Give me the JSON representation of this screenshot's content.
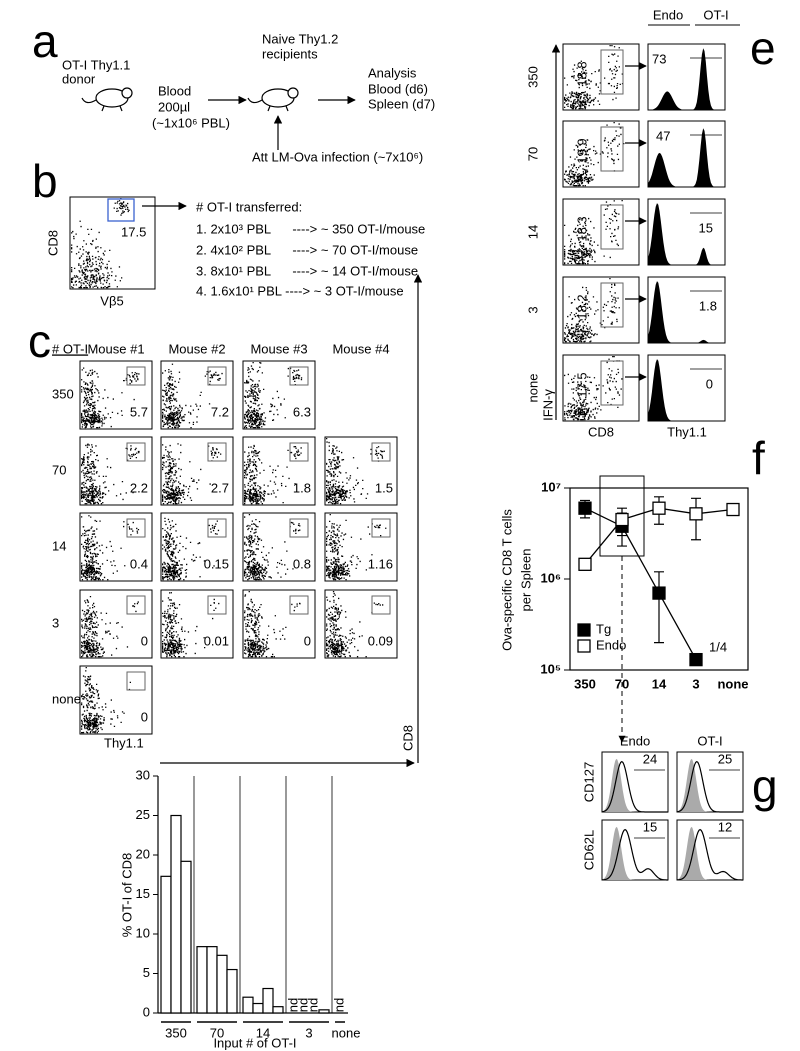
{
  "panel_a": {
    "letter": "a",
    "donor": [
      "OT-I Thy1.1",
      "donor"
    ],
    "blood": [
      "Blood",
      "200µl",
      "(~1x10⁶ PBL)"
    ],
    "recipients": [
      "Naive Thy1.2",
      "recipients"
    ],
    "analysis": [
      "Analysis",
      "Blood (d6)",
      "Spleen (d7)"
    ],
    "infection": "Att LM-Ova infection (~7x10⁶)"
  },
  "panel_b": {
    "letter": "b",
    "y_label": "CD8",
    "x_label": "Vβ5",
    "gate_value": "17.5",
    "list_title": "# OT-I transferred:",
    "list": [
      "1. 2x10³ PBL      ----> ~ 350 OT-I/mouse",
      "2. 4x10² PBL      ----> ~ 70 OT-I/mouse",
      "3. 8x10¹ PBL      ----> ~ 14 OT-I/mouse",
      "4. 1.6x10¹ PBL ----> ~ 3 OT-I/mouse"
    ]
  },
  "panel_c": {
    "letter": "c",
    "row_header": "# OT-I",
    "columns": [
      "Mouse #1",
      "Mouse #2",
      "Mouse #3",
      "Mouse #4"
    ],
    "rows": [
      {
        "label": "350",
        "values": [
          "5.7",
          "7.2",
          "6.3",
          null
        ]
      },
      {
        "label": "70",
        "values": [
          "2.2",
          "2.7",
          "1.8",
          "1.5"
        ]
      },
      {
        "label": "14",
        "values": [
          "0.4",
          "0.15",
          "0.8",
          "1.16"
        ]
      },
      {
        "label": "3",
        "values": [
          "0",
          "0.01",
          "0",
          "0.09"
        ]
      },
      {
        "label": "none",
        "values": [
          "0",
          null,
          null,
          null
        ]
      }
    ],
    "x_label": "Thy1.1",
    "y_label": "CD8"
  },
  "panel_e": {
    "letter": "e",
    "headers": [
      "Endo",
      "OT-I"
    ],
    "rows": [
      {
        "label": "350",
        "cd8_gate": "18.8",
        "thy11": "73"
      },
      {
        "label": "70",
        "cd8_gate": "19.9",
        "thy11": "47"
      },
      {
        "label": "14",
        "cd8_gate": "18.3",
        "thy11": "15"
      },
      {
        "label": "3",
        "cd8_gate": "18.2",
        "thy11": "1.8"
      },
      {
        "label": "none",
        "cd8_gate": "17.5",
        "thy11": "0"
      }
    ],
    "y_label": "IFN-γ",
    "x_labels": [
      "CD8",
      "Thy1.1"
    ]
  },
  "panel_f": {
    "letter": "f"
  },
  "panel_g": {
    "letter": "g",
    "columns": [
      "Endo",
      "OT-I"
    ],
    "rows": [
      {
        "label": "CD127",
        "values": [
          "24",
          "25"
        ]
      },
      {
        "label": "CD62L",
        "values": [
          "15",
          "12"
        ]
      }
    ]
  },
  "chart_data": [
    {
      "type": "bar",
      "y_label": "% OT-I of CD8",
      "x_label": "Input # of OT-I",
      "color": "#ffffff",
      "groups": [
        {
          "name": "350",
          "values": [
            17.3,
            25,
            19.2
          ]
        },
        {
          "name": "70",
          "values": [
            8.4,
            8.4,
            7.3,
            5.5
          ]
        },
        {
          "name": "14",
          "values": [
            2,
            1.2,
            3.1,
            0.8
          ]
        },
        {
          "name": "3",
          "values": [
            null,
            null,
            null,
            0.4
          ],
          "value_labels": [
            "nd",
            "nd",
            "nd",
            null
          ]
        },
        {
          "name": "none",
          "values": [
            null
          ],
          "value_labels": [
            "nd"
          ]
        }
      ],
      "ylim": [
        0,
        30
      ],
      "yticks": [
        0,
        5,
        10,
        15,
        20,
        25,
        30
      ]
    },
    {
      "type": "line",
      "y_label": [
        "Ova-specific CD8 T cells",
        "per Spleen"
      ],
      "categories": [
        "350",
        "70",
        "14",
        "3",
        "none"
      ],
      "log_scale": true,
      "ylim": [
        100000,
        10000000
      ],
      "yticks": [
        {
          "value": 100000,
          "label": "10⁵"
        },
        {
          "value": 1000000,
          "label": "10⁶"
        },
        {
          "value": 10000000,
          "label": "10⁷"
        }
      ],
      "legend": "lower left",
      "series": [
        {
          "name": "Tg",
          "color": "#000000",
          "values": [
            6000000,
            3800000,
            700000,
            130000,
            null
          ],
          "errors": [
            1300000,
            1500000,
            500000,
            null,
            null
          ]
        },
        {
          "name": "Endo",
          "color": "#ffffff",
          "values": [
            1450000,
            4500000,
            6000000,
            5200000,
            5800000
          ],
          "errors": [
            200000,
            1500000,
            2000000,
            2500000,
            800000
          ]
        }
      ],
      "annotation": "1/4"
    }
  ]
}
